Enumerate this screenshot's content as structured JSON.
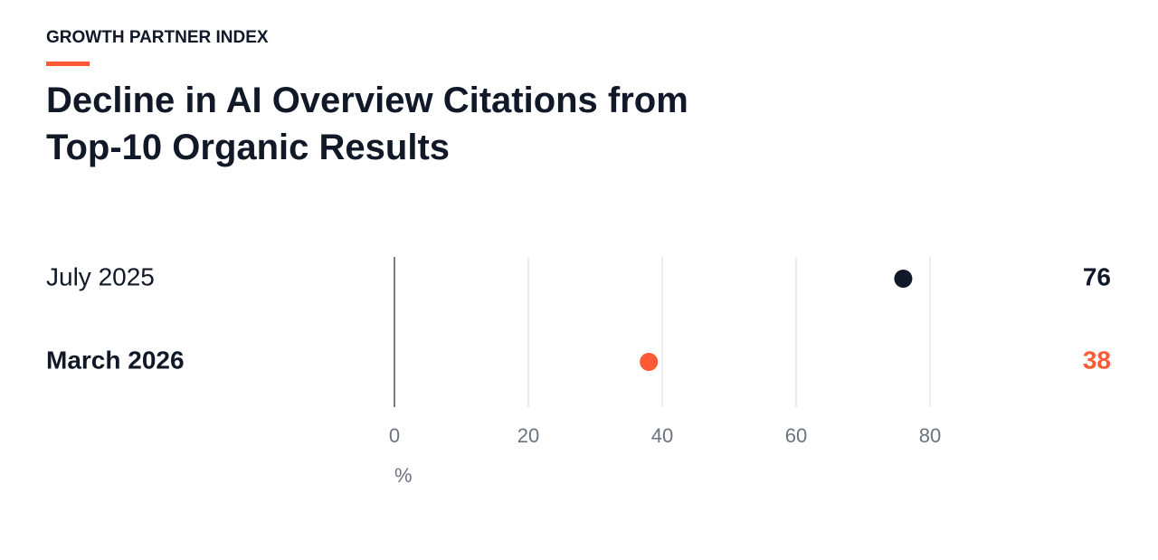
{
  "chart_data": {
    "type": "dot",
    "eyebrow": "GROWTH PARTNER INDEX",
    "title": "Decline in AI Overview Citations from Top-10 Organic Results",
    "x_label": "%",
    "categories": [
      "July 2025",
      "March 2026"
    ],
    "values": [
      76,
      38
    ],
    "colors": [
      "#111827",
      "#ff5a36"
    ],
    "xlim": [
      0,
      100
    ],
    "xticks": [
      0,
      20,
      40,
      60,
      80
    ],
    "grid": true
  }
}
